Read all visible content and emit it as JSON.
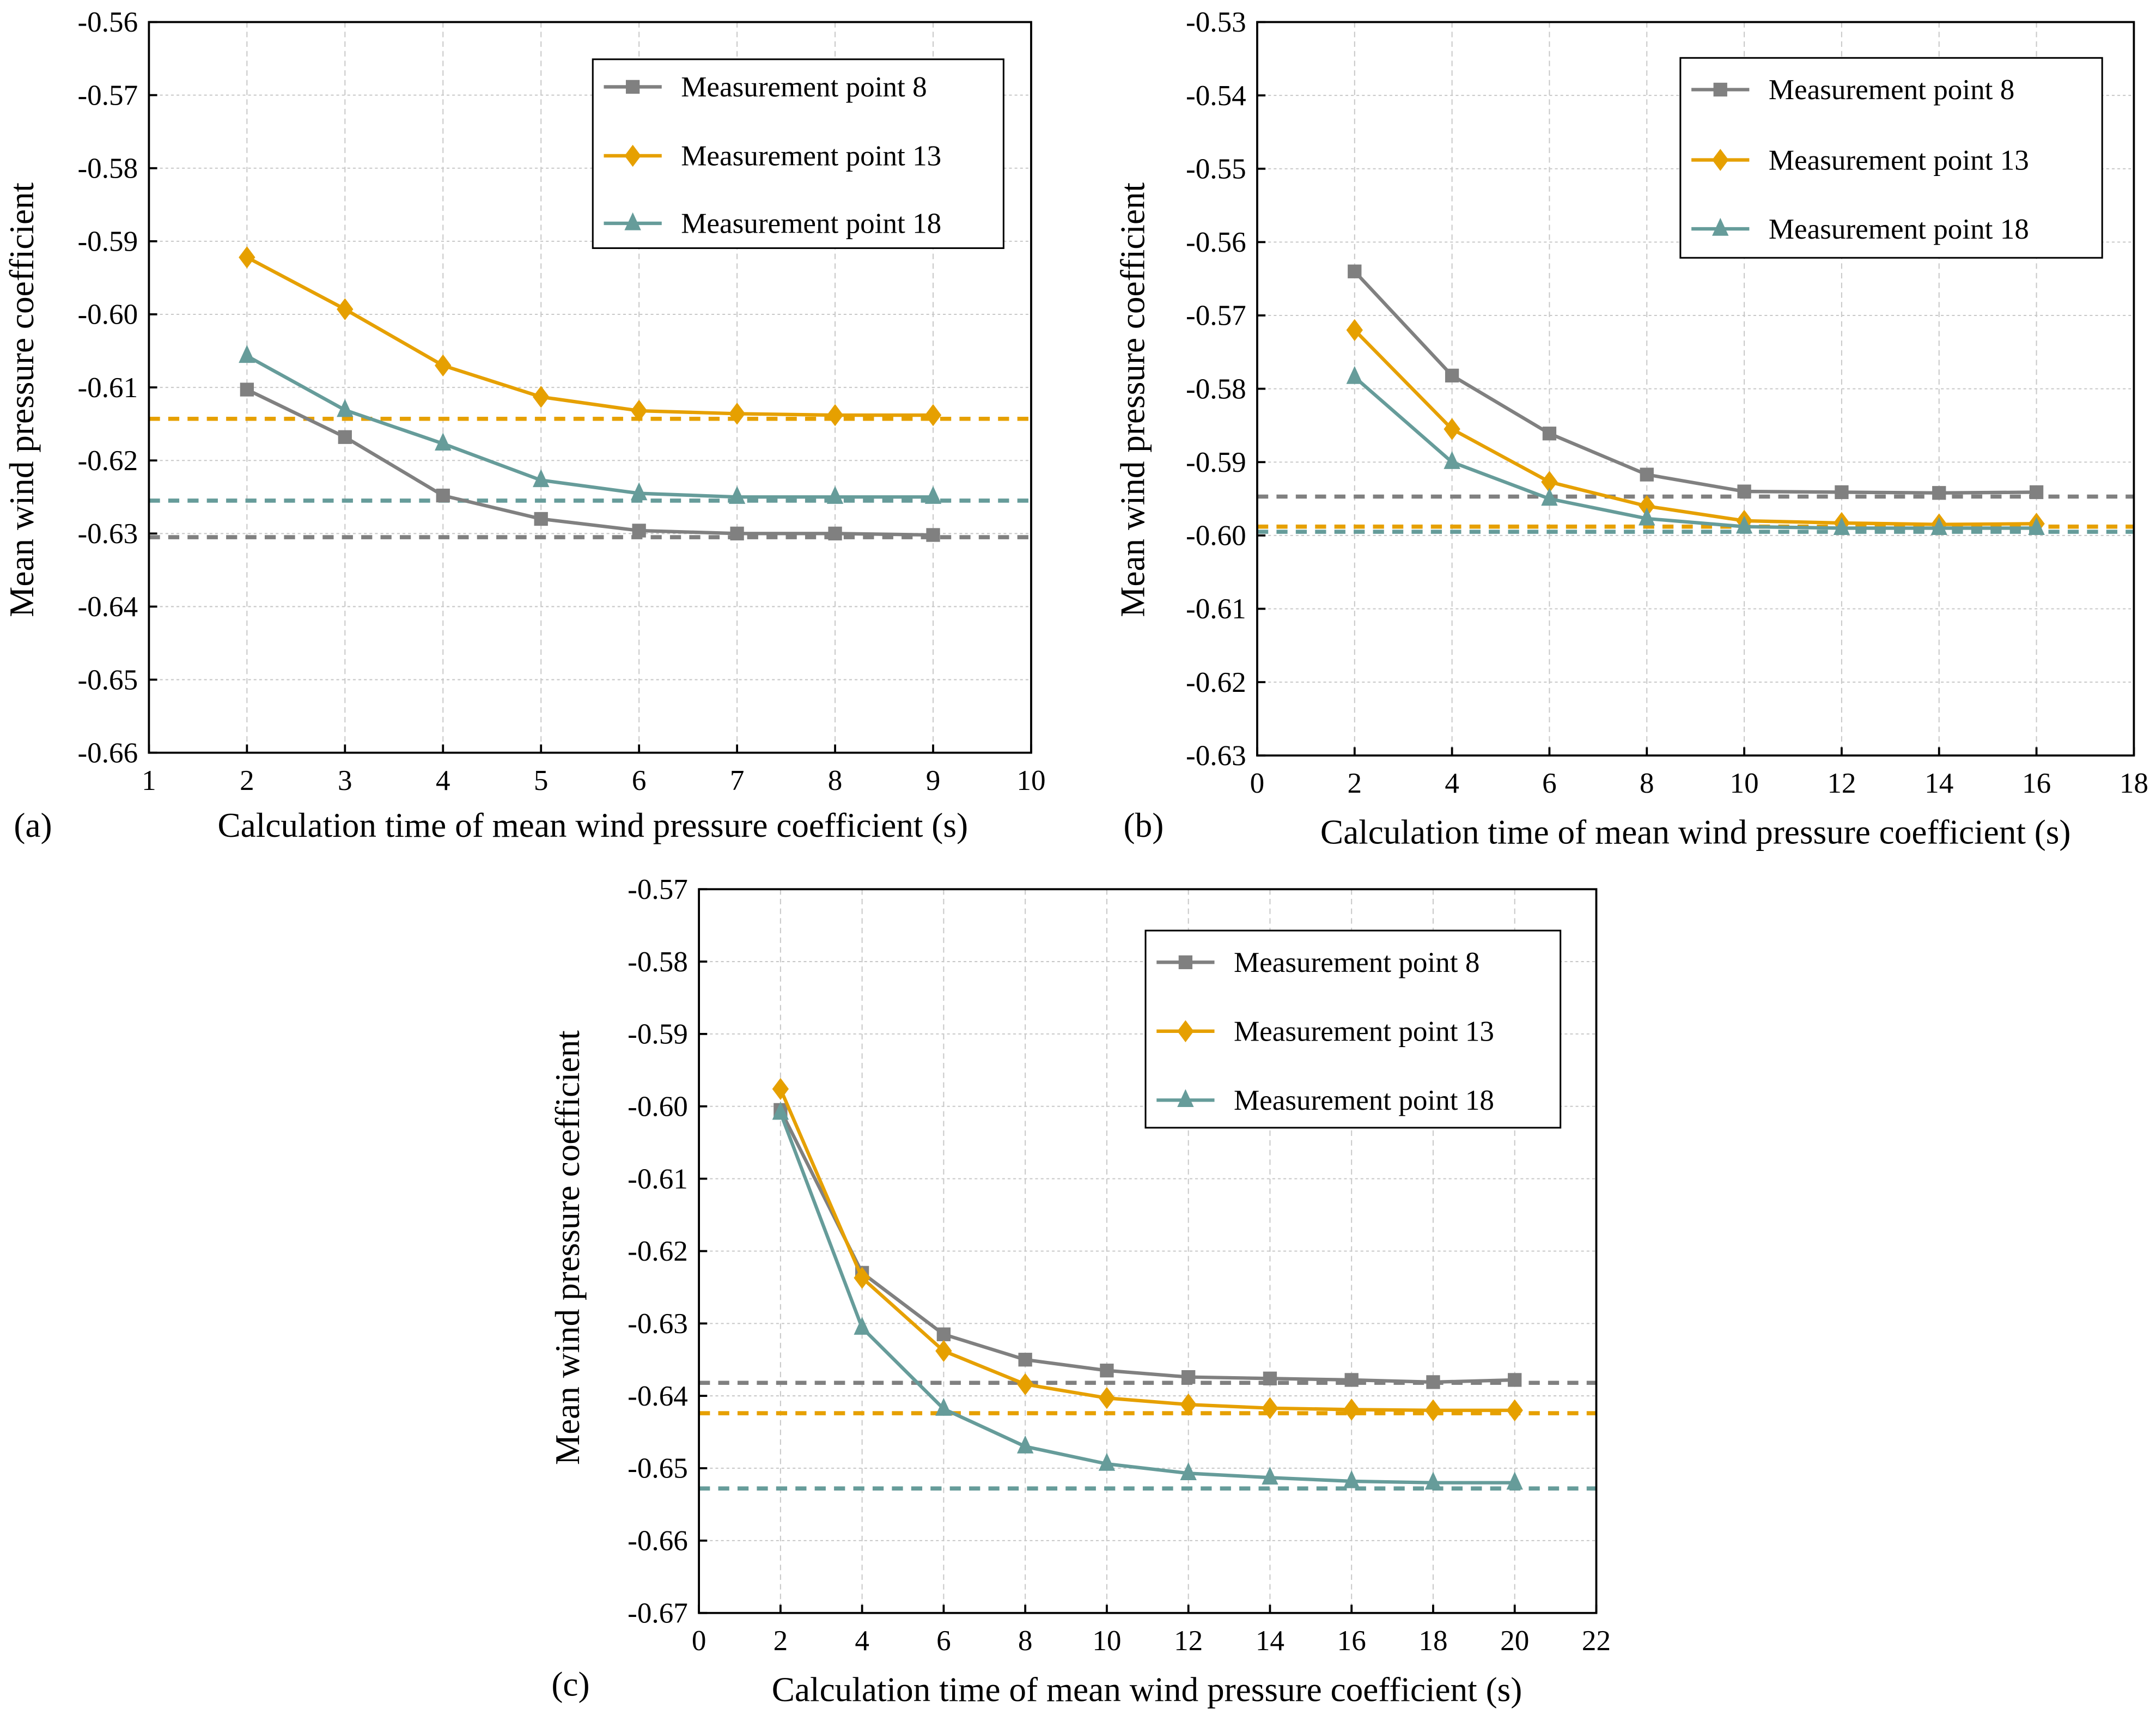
{
  "colors": {
    "mp8": "#808080",
    "mp13": "#E6A000",
    "mp18": "#669C9A"
  },
  "chart_data": [
    {
      "type": "line",
      "panel_label": "(a)",
      "xlabel": "Calculation time of mean wind pressure coefficient (s)",
      "ylabel": "Mean wind pressure coefficient",
      "xlim": [
        1,
        10
      ],
      "ylim": [
        -0.66,
        -0.56
      ],
      "xticks": [
        "1",
        "2",
        "3",
        "4",
        "5",
        "6",
        "7",
        "8",
        "9",
        "10"
      ],
      "xtick_values": [
        1,
        2,
        3,
        4,
        5,
        6,
        7,
        8,
        9,
        10
      ],
      "yticks": [
        "-0.56",
        "-0.57",
        "-0.58",
        "-0.59",
        "-0.60",
        "-0.61",
        "-0.62",
        "-0.63",
        "-0.64",
        "-0.65",
        "-0.66"
      ],
      "ytick_values": [
        -0.56,
        -0.57,
        -0.58,
        -0.59,
        -0.6,
        -0.61,
        -0.62,
        -0.63,
        -0.64,
        -0.65,
        -0.66
      ],
      "grid": true,
      "legend_position": "top-right",
      "x": [
        2,
        3,
        4,
        5,
        6,
        7,
        8,
        9
      ],
      "series": [
        {
          "name": "Measurement point 8",
          "marker": "square",
          "color_key": "mp8",
          "values": [
            -0.6103,
            -0.6168,
            -0.6248,
            -0.628,
            -0.6296,
            -0.63,
            -0.63,
            -0.6302
          ],
          "reference": -0.6305
        },
        {
          "name": "Measurement point 13",
          "marker": "diamond",
          "color_key": "mp13",
          "values": [
            -0.5922,
            -0.5993,
            -0.607,
            -0.6113,
            -0.6132,
            -0.6136,
            -0.6138,
            -0.6138
          ],
          "reference": -0.6143
        },
        {
          "name": "Measurement point 18",
          "marker": "triangle",
          "color_key": "mp18",
          "values": [
            -0.6057,
            -0.6131,
            -0.6177,
            -0.6227,
            -0.6245,
            -0.625,
            -0.625,
            -0.625
          ],
          "reference": -0.6255
        }
      ]
    },
    {
      "type": "line",
      "panel_label": "(b)",
      "xlabel": "Calculation time of mean wind pressure coefficient (s)",
      "ylabel": "Mean wind pressure coefficient",
      "xlim": [
        0,
        18
      ],
      "ylim": [
        -0.63,
        -0.53
      ],
      "xticks": [
        "0",
        "2",
        "4",
        "6",
        "8",
        "10",
        "12",
        "14",
        "16",
        "18"
      ],
      "xtick_values": [
        0,
        2,
        4,
        6,
        8,
        10,
        12,
        14,
        16,
        18
      ],
      "yticks": [
        "-0.53",
        "-0.54",
        "-0.55",
        "-0.56",
        "-0.57",
        "-0.58",
        "-0.59",
        "-0.60",
        "-0.61",
        "-0.62",
        "-0.63"
      ],
      "ytick_values": [
        -0.53,
        -0.54,
        -0.55,
        -0.56,
        -0.57,
        -0.58,
        -0.59,
        -0.6,
        -0.61,
        -0.62,
        -0.63
      ],
      "grid": true,
      "legend_position": "top-right",
      "x": [
        2,
        4,
        6,
        8,
        10,
        12,
        14,
        16
      ],
      "series": [
        {
          "name": "Measurement point 8",
          "marker": "square",
          "color_key": "mp8",
          "values": [
            -0.564,
            -0.5782,
            -0.5861,
            -0.5917,
            -0.594,
            -0.5941,
            -0.5942,
            -0.5941
          ],
          "reference": -0.5947
        },
        {
          "name": "Measurement point 13",
          "marker": "diamond",
          "color_key": "mp13",
          "values": [
            -0.572,
            -0.5855,
            -0.5927,
            -0.596,
            -0.598,
            -0.5983,
            -0.5985,
            -0.5984
          ],
          "reference": -0.5988
        },
        {
          "name": "Measurement point 18",
          "marker": "triangle",
          "color_key": "mp18",
          "values": [
            -0.5784,
            -0.59,
            -0.595,
            -0.5977,
            -0.5988,
            -0.599,
            -0.599,
            -0.599
          ],
          "reference": -0.5995
        }
      ]
    },
    {
      "type": "line",
      "panel_label": "(c)",
      "xlabel": "Calculation time of mean wind pressure coefficient (s)",
      "ylabel": "Mean wind pressure coefficient",
      "xlim": [
        0,
        22
      ],
      "ylim": [
        -0.67,
        -0.57
      ],
      "xticks": [
        "0",
        "2",
        "4",
        "6",
        "8",
        "10",
        "12",
        "14",
        "16",
        "18",
        "20",
        "22"
      ],
      "xtick_values": [
        0,
        2,
        4,
        6,
        8,
        10,
        12,
        14,
        16,
        18,
        20,
        22
      ],
      "yticks": [
        "-0.57",
        "-0.58",
        "-0.59",
        "-0.60",
        "-0.61",
        "-0.62",
        "-0.63",
        "-0.64",
        "-0.65",
        "-0.66",
        "-0.67"
      ],
      "ytick_values": [
        -0.57,
        -0.58,
        -0.59,
        -0.6,
        -0.61,
        -0.62,
        -0.63,
        -0.64,
        -0.65,
        -0.66,
        -0.67
      ],
      "grid": true,
      "legend_position": "top-right",
      "x": [
        2,
        4,
        6,
        8,
        10,
        12,
        14,
        16,
        18,
        20
      ],
      "series": [
        {
          "name": "Measurement point 8",
          "marker": "square",
          "color_key": "mp8",
          "values": [
            -0.6005,
            -0.623,
            -0.6315,
            -0.635,
            -0.6365,
            -0.6374,
            -0.6376,
            -0.6378,
            -0.6381,
            -0.6378
          ],
          "reference": -0.6382
        },
        {
          "name": "Measurement point 13",
          "marker": "diamond",
          "color_key": "mp13",
          "values": [
            -0.5976,
            -0.6237,
            -0.6338,
            -0.6384,
            -0.6403,
            -0.6412,
            -0.6417,
            -0.6419,
            -0.642,
            -0.642
          ],
          "reference": -0.6424
        },
        {
          "name": "Measurement point 18",
          "marker": "triangle",
          "color_key": "mp18",
          "values": [
            -0.6009,
            -0.6306,
            -0.6418,
            -0.647,
            -0.6494,
            -0.6507,
            -0.6513,
            -0.6518,
            -0.652,
            -0.652
          ],
          "reference": -0.6528
        }
      ]
    }
  ]
}
